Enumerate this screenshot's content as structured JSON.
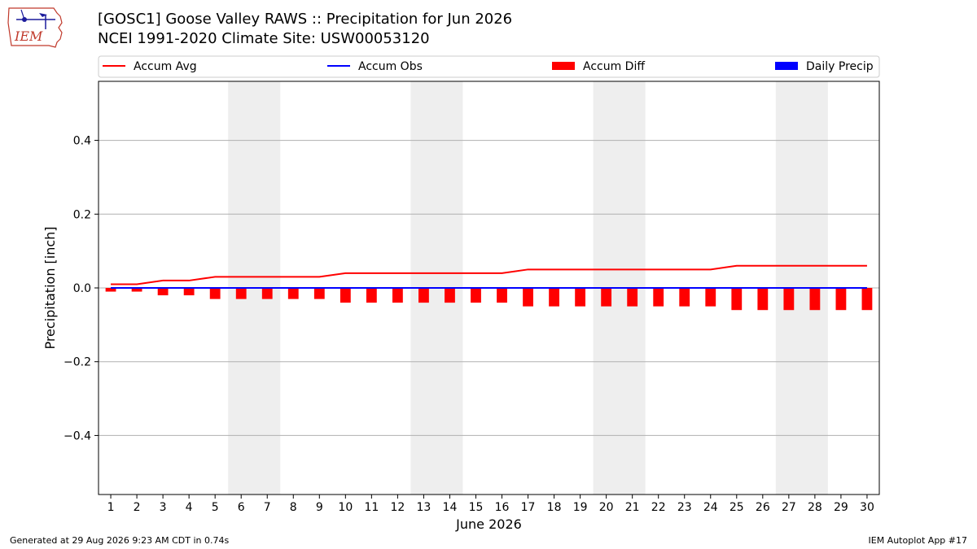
{
  "header": {
    "title_line1": "[GOSC1] Goose Valley RAWS :: Precipitation for Jun 2026",
    "title_line2": "NCEI 1991-2020 Climate Site: USW00053120",
    "logo_text": "IEM"
  },
  "footer": {
    "left": "Generated at 29 Aug 2026 9:23 AM CDT in 0.74s",
    "right": "IEM Autoplot App #17"
  },
  "colors": {
    "accum_avg": "#ff0000",
    "accum_obs": "#0000ff",
    "accum_diff": "#ff0000",
    "daily_precip": "#0000ff",
    "weekend_shade": "#eeeeee",
    "grid": "#b0b0b0"
  },
  "chart_data": {
    "type": "line",
    "xlabel": "June 2026",
    "ylabel": "Precipitation [inch]",
    "ylim": [
      -0.56,
      0.56
    ],
    "yticks": [
      -0.4,
      -0.2,
      0.0,
      0.2,
      0.4
    ],
    "ytick_labels": [
      "−0.4",
      "−0.2",
      "0.0",
      "0.2",
      "0.4"
    ],
    "x": [
      1,
      2,
      3,
      4,
      5,
      6,
      7,
      8,
      9,
      10,
      11,
      12,
      13,
      14,
      15,
      16,
      17,
      18,
      19,
      20,
      21,
      22,
      23,
      24,
      25,
      26,
      27,
      28,
      29,
      30
    ],
    "grid": "horizontal",
    "legend_position": "top",
    "shaded_day_ranges": [
      [
        6,
        7
      ],
      [
        13,
        14
      ],
      [
        20,
        21
      ],
      [
        27,
        28
      ]
    ],
    "series": [
      {
        "name": "Accum Avg",
        "kind": "line",
        "values": [
          0.01,
          0.01,
          0.02,
          0.02,
          0.03,
          0.03,
          0.03,
          0.03,
          0.03,
          0.04,
          0.04,
          0.04,
          0.04,
          0.04,
          0.04,
          0.04,
          0.05,
          0.05,
          0.05,
          0.05,
          0.05,
          0.05,
          0.05,
          0.05,
          0.06,
          0.06,
          0.06,
          0.06,
          0.06,
          0.06
        ]
      },
      {
        "name": "Accum Obs",
        "kind": "line",
        "values": [
          0,
          0,
          0,
          0,
          0,
          0,
          0,
          0,
          0,
          0,
          0,
          0,
          0,
          0,
          0,
          0,
          0,
          0,
          0,
          0,
          0,
          0,
          0,
          0,
          0,
          0,
          0,
          0,
          0,
          0
        ]
      },
      {
        "name": "Accum Diff",
        "kind": "bar",
        "values": [
          -0.01,
          -0.01,
          -0.02,
          -0.02,
          -0.03,
          -0.03,
          -0.03,
          -0.03,
          -0.03,
          -0.04,
          -0.04,
          -0.04,
          -0.04,
          -0.04,
          -0.04,
          -0.04,
          -0.05,
          -0.05,
          -0.05,
          -0.05,
          -0.05,
          -0.05,
          -0.05,
          -0.05,
          -0.06,
          -0.06,
          -0.06,
          -0.06,
          -0.06,
          -0.06
        ]
      },
      {
        "name": "Daily Precip",
        "kind": "bar",
        "values": [
          0,
          0,
          0,
          0,
          0,
          0,
          0,
          0,
          0,
          0,
          0,
          0,
          0,
          0,
          0,
          0,
          0,
          0,
          0,
          0,
          0,
          0,
          0,
          0,
          0,
          0,
          0,
          0,
          0,
          0
        ]
      }
    ]
  }
}
